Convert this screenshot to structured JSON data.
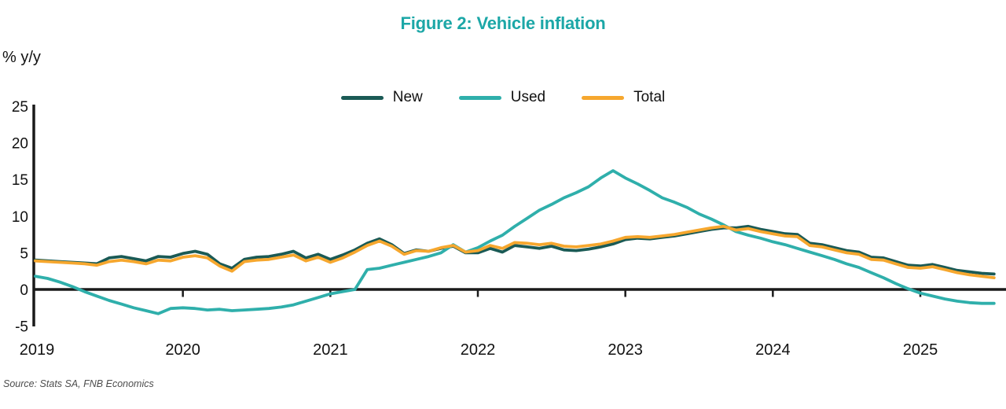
{
  "title": "Figure 2: Vehicle inflation",
  "y_unit_label": "% y/y",
  "source": "Source: Stats SA, FNB Economics",
  "colors": {
    "title_teal": "#1CA7A7",
    "new_series": "#1A5A55",
    "used_series": "#2FAFAB",
    "total_series": "#F6A72E",
    "axis": "#1a1a1a",
    "text": "#111111",
    "source_text": "#4d4d4d"
  },
  "chart_data": {
    "type": "line",
    "title": "Figure 2: Vehicle inflation",
    "xlabel": "",
    "ylabel": "% y/y",
    "ylim": [
      -5,
      25
    ],
    "y_ticks": [
      25,
      20,
      15,
      10,
      5,
      0,
      -5
    ],
    "x_tick_labels": [
      "2019",
      "2020",
      "2021",
      "2022",
      "2023",
      "2024",
      "2025"
    ],
    "x_start": "2019-01",
    "x_end": "2025-07",
    "frequency": "monthly",
    "grid": false,
    "legend_position": "top-center",
    "series": [
      {
        "name": "New",
        "color": "#1A5A55",
        "values": [
          4.0,
          3.9,
          3.8,
          3.7,
          3.6,
          3.5,
          4.3,
          4.5,
          4.2,
          3.9,
          4.5,
          4.4,
          4.9,
          5.2,
          4.8,
          3.5,
          2.9,
          4.1,
          4.4,
          4.5,
          4.8,
          5.2,
          4.3,
          4.8,
          4.1,
          4.7,
          5.4,
          6.3,
          6.9,
          6.1,
          4.9,
          5.4,
          5.2,
          5.6,
          5.9,
          5.0,
          5.0,
          5.6,
          5.1,
          6.0,
          5.8,
          5.6,
          5.9,
          5.4,
          5.3,
          5.5,
          5.8,
          6.2,
          6.8,
          7.0,
          6.9,
          7.1,
          7.3,
          7.6,
          7.9,
          8.2,
          8.4,
          8.4,
          8.6,
          8.2,
          7.9,
          7.6,
          7.5,
          6.3,
          6.1,
          5.7,
          5.3,
          5.1,
          4.4,
          4.3,
          3.8,
          3.3,
          3.2,
          3.4,
          3.0,
          2.6,
          2.4,
          2.2,
          2.1
        ]
      },
      {
        "name": "Used",
        "color": "#2FAFAB",
        "values": [
          1.8,
          1.5,
          1.0,
          0.4,
          -0.3,
          -0.9,
          -1.5,
          -2.0,
          -2.5,
          -2.9,
          -3.3,
          -2.6,
          -2.5,
          -2.6,
          -2.8,
          -2.7,
          -2.9,
          -2.8,
          -2.7,
          -2.6,
          -2.4,
          -2.1,
          -1.6,
          -1.1,
          -0.6,
          -0.3,
          0.0,
          2.7,
          2.9,
          3.3,
          3.7,
          4.1,
          4.5,
          5.0,
          6.1,
          5.1,
          5.7,
          6.6,
          7.4,
          8.6,
          9.7,
          10.8,
          11.6,
          12.5,
          13.2,
          14.0,
          15.2,
          16.2,
          15.2,
          14.4,
          13.5,
          12.5,
          11.9,
          11.2,
          10.3,
          9.6,
          8.8,
          7.9,
          7.4,
          7.0,
          6.5,
          6.1,
          5.6,
          5.1,
          4.6,
          4.1,
          3.5,
          3.0,
          2.3,
          1.6,
          0.8,
          0.1,
          -0.5,
          -0.9,
          -1.3,
          -1.6,
          -1.8,
          -1.9,
          -1.9
        ]
      },
      {
        "name": "Total",
        "color": "#F6A72E",
        "values": [
          3.9,
          3.8,
          3.7,
          3.6,
          3.5,
          3.3,
          3.8,
          4.0,
          3.8,
          3.5,
          4.0,
          3.9,
          4.4,
          4.6,
          4.3,
          3.2,
          2.5,
          3.8,
          4.0,
          4.1,
          4.4,
          4.7,
          3.9,
          4.4,
          3.7,
          4.3,
          5.1,
          6.0,
          6.6,
          5.9,
          4.8,
          5.3,
          5.2,
          5.7,
          6.0,
          5.1,
          5.3,
          6.0,
          5.6,
          6.4,
          6.3,
          6.1,
          6.3,
          5.9,
          5.8,
          6.0,
          6.2,
          6.6,
          7.1,
          7.2,
          7.1,
          7.3,
          7.5,
          7.8,
          8.1,
          8.4,
          8.6,
          8.1,
          8.3,
          7.9,
          7.6,
          7.3,
          7.2,
          6.0,
          5.8,
          5.4,
          5.0,
          4.8,
          4.1,
          4.0,
          3.5,
          3.0,
          2.9,
          3.1,
          2.7,
          2.3,
          2.0,
          1.8,
          1.6
        ]
      }
    ]
  }
}
